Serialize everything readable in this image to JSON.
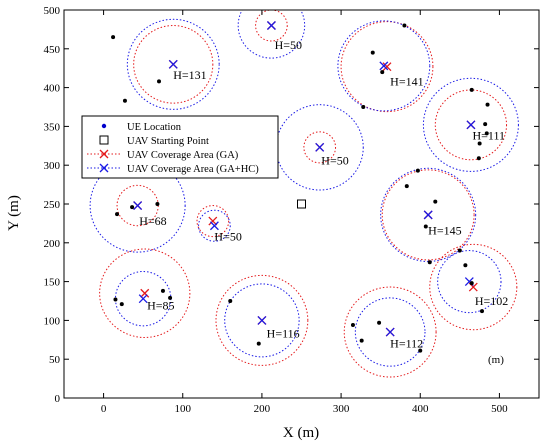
{
  "chart_data": {
    "type": "scatter",
    "xlabel": "X (m)",
    "ylabel": "Y (m)",
    "xlim": [
      -50,
      550
    ],
    "ylim": [
      0,
      500
    ],
    "xticks": [
      0,
      100,
      200,
      300,
      400,
      500
    ],
    "yticks": [
      0,
      50,
      100,
      150,
      200,
      250,
      300,
      350,
      400,
      450,
      500
    ],
    "grid": false,
    "legend_position": "top-left",
    "legend": [
      {
        "label": "UE Location",
        "marker": "dot",
        "color": "#0000cc"
      },
      {
        "label": "UAV Starting Point",
        "marker": "square",
        "color": "#000000"
      },
      {
        "label": "UAV Coverage Area (GA)",
        "marker": "x",
        "line": "dotted",
        "color": "#e41a1c"
      },
      {
        "label": "UAV Coverage Area (GA+HC)",
        "marker": "x",
        "line": "dotted",
        "color": "#1a1ae6"
      }
    ],
    "unit_note": "(m)",
    "start_point": {
      "x": 250,
      "y": 250
    },
    "ue_locations": [
      [
        12,
        465
      ],
      [
        27,
        383
      ],
      [
        70,
        408
      ],
      [
        380,
        480
      ],
      [
        340,
        445
      ],
      [
        352,
        420
      ],
      [
        328,
        375
      ],
      [
        465,
        397
      ],
      [
        485,
        378
      ],
      [
        482,
        353
      ],
      [
        484,
        341
      ],
      [
        475,
        328
      ],
      [
        474,
        309
      ],
      [
        17,
        237
      ],
      [
        36,
        246
      ],
      [
        68,
        250
      ],
      [
        383,
        273
      ],
      [
        397,
        293
      ],
      [
        419,
        253
      ],
      [
        407,
        221
      ],
      [
        412,
        175
      ],
      [
        450,
        190
      ],
      [
        457,
        171
      ],
      [
        465,
        148
      ],
      [
        478,
        112
      ],
      [
        15,
        127
      ],
      [
        23,
        121
      ],
      [
        75,
        138
      ],
      [
        84,
        129
      ],
      [
        160,
        125
      ],
      [
        196,
        70
      ],
      [
        315,
        94
      ],
      [
        326,
        74
      ],
      [
        348,
        97
      ],
      [
        400,
        61
      ]
    ],
    "coverage_areas": [
      {
        "label": "H=131",
        "height": 131,
        "ga_center": [
          88,
          430
        ],
        "ga_radius": 50,
        "hc_center": [
          88,
          430
        ],
        "hc_radius": 58
      },
      {
        "label": "H=50",
        "height": 50,
        "ga_center": [
          212,
          480
        ],
        "ga_radius": 20,
        "hc_center": [
          212,
          480
        ],
        "hc_radius": 42
      },
      {
        "label": "H=141",
        "height": 141,
        "ga_center": [
          358,
          427
        ],
        "ga_radius": 58,
        "hc_center": [
          354,
          428
        ],
        "hc_radius": 58
      },
      {
        "label": "H=111",
        "height": 111,
        "ga_center": [
          464,
          352
        ],
        "ga_radius": 45,
        "hc_center": [
          464,
          352
        ],
        "hc_radius": 60
      },
      {
        "label": "H=50",
        "height": 50,
        "ga_center": [
          273,
          323
        ],
        "ga_radius": 20,
        "hc_center": [
          273,
          323
        ],
        "hc_radius": 55
      },
      {
        "label": "H=68",
        "height": 68,
        "ga_center": [
          43,
          248
        ],
        "ga_radius": 26,
        "hc_center": [
          43,
          248
        ],
        "hc_radius": 60
      },
      {
        "label": "H=50",
        "height": 50,
        "ga_center": [
          138,
          228
        ],
        "ga_radius": 20,
        "hc_center": [
          140,
          222
        ],
        "hc_radius": 20
      },
      {
        "label": "H=145",
        "height": 145,
        "ga_center": [
          410,
          236
        ],
        "ga_radius": 58,
        "hc_center": [
          410,
          236
        ],
        "hc_radius": 60
      },
      {
        "label": "H=102",
        "height": 102,
        "ga_center": [
          467,
          143
        ],
        "ga_radius": 55,
        "hc_center": [
          462,
          150
        ],
        "hc_radius": 40
      },
      {
        "label": "H=85",
        "height": 85,
        "ga_center": [
          52,
          135
        ],
        "ga_radius": 57,
        "hc_center": [
          50,
          128
        ],
        "hc_radius": 35
      },
      {
        "label": "H=116",
        "height": 116,
        "ga_center": [
          200,
          100
        ],
        "ga_radius": 58,
        "hc_center": [
          200,
          100
        ],
        "hc_radius": 47
      },
      {
        "label": "H=112",
        "height": 112,
        "ga_center": [
          362,
          85
        ],
        "ga_radius": 58,
        "hc_center": [
          362,
          85
        ],
        "hc_radius": 44
      }
    ],
    "label_offsets": [
      [
        0,
        -19
      ],
      [
        4,
        -30
      ],
      [
        4,
        -24
      ],
      [
        2,
        -19
      ],
      [
        2,
        -22
      ],
      [
        2,
        -25
      ],
      [
        2,
        -25
      ],
      [
        0,
        -25
      ],
      [
        2,
        -23
      ],
      [
        3,
        -21
      ],
      [
        6,
        -22
      ],
      [
        0,
        -20
      ]
    ],
    "colors": {
      "ue": "#0000cc",
      "ga": "#e41a1c",
      "hc": "#1a1ae6",
      "axis": "#000000"
    }
  }
}
